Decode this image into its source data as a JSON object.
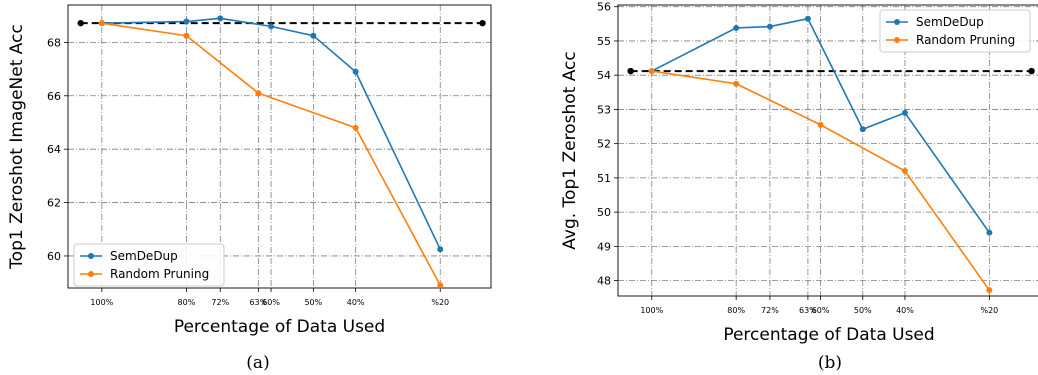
{
  "chart_data": [
    {
      "type": "line",
      "caption": "(a)",
      "xlabel": "Percentage of Data Used",
      "ylabel": "Top1 Zeroshot ImageNet Acc",
      "categories": [
        "100%",
        "80%",
        "72%",
        "63%",
        "60%",
        "50%",
        "40%",
        "%20"
      ],
      "x": [
        100,
        80,
        72,
        63,
        60,
        50,
        40,
        20
      ],
      "xlim": [
        108,
        8
      ],
      "ylim": [
        58.8,
        69.4
      ],
      "yticks": [
        60,
        62,
        64,
        66,
        68
      ],
      "legend_position": "lower-left",
      "grid": true,
      "series": [
        {
          "name": "SemDeDup",
          "color": "#1f77b4",
          "x": [
            100,
            80,
            72,
            60,
            50,
            40,
            20
          ],
          "values": [
            68.72,
            68.78,
            68.9,
            68.6,
            68.25,
            66.9,
            60.25
          ]
        },
        {
          "name": "Random Pruning",
          "color": "#ff7f0e",
          "x": [
            100,
            80,
            63,
            40,
            20
          ],
          "values": [
            68.72,
            68.25,
            66.1,
            64.8,
            58.9
          ]
        }
      ],
      "baseline": {
        "value": 68.72,
        "x": [
          105,
          10
        ],
        "color": "#000000"
      }
    },
    {
      "type": "line",
      "caption": "(b)",
      "xlabel": "Percentage of Data Used",
      "ylabel": "Avg. Top1 Zeroshot Acc",
      "categories": [
        "100%",
        "80%",
        "72%",
        "63%",
        "60%",
        "50%",
        "40%",
        "%20"
      ],
      "x": [
        100,
        80,
        72,
        63,
        60,
        50,
        40,
        20
      ],
      "xlim": [
        108,
        8
      ],
      "ylim": [
        47.55,
        56.05
      ],
      "yticks": [
        48,
        49,
        50,
        51,
        52,
        53,
        54,
        55,
        56
      ],
      "legend_position": "top-right",
      "grid": true,
      "series": [
        {
          "name": "SemDeDup",
          "color": "#1f77b4",
          "x": [
            100,
            80,
            72,
            63,
            50,
            40,
            20
          ],
          "values": [
            54.12,
            55.38,
            55.42,
            55.65,
            52.42,
            52.9,
            49.4
          ]
        },
        {
          "name": "Random Pruning",
          "color": "#ff7f0e",
          "x": [
            100,
            80,
            60,
            40,
            20
          ],
          "values": [
            54.12,
            53.75,
            52.55,
            51.2,
            47.72
          ]
        }
      ],
      "baseline": {
        "value": 54.12,
        "x": [
          105,
          10
        ],
        "color": "#000000"
      }
    }
  ]
}
